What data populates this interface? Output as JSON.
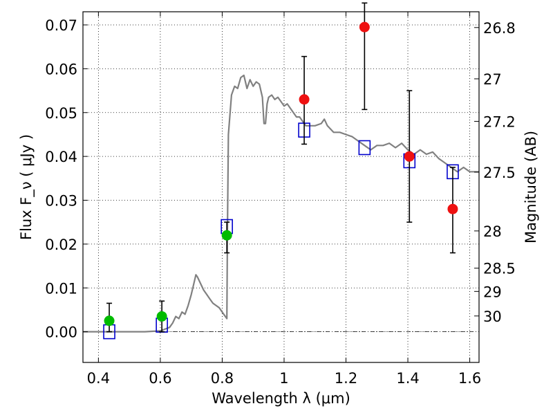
{
  "chart_data": {
    "type": "scatter",
    "xlabel": "Wavelength  λ (μm)",
    "ylabel": "Flux  F_ν  ( μJy )",
    "y2label": "Magnitude (AB)",
    "xlim": [
      0.35,
      1.63
    ],
    "ylim": [
      -0.007,
      0.073
    ],
    "grid": true,
    "xticks": [
      {
        "value": 0.4,
        "label": "0.4"
      },
      {
        "value": 0.6,
        "label": "0.6"
      },
      {
        "value": 0.8,
        "label": "0.8"
      },
      {
        "value": 1.0,
        "label": "1"
      },
      {
        "value": 1.2,
        "label": "1.2"
      },
      {
        "value": 1.4,
        "label": "1.4"
      },
      {
        "value": 1.6,
        "label": "1.6"
      }
    ],
    "yticks": [
      {
        "value": 0.0,
        "label": "0.00"
      },
      {
        "value": 0.01,
        "label": "0.01"
      },
      {
        "value": 0.02,
        "label": "0.02"
      },
      {
        "value": 0.03,
        "label": "0.03"
      },
      {
        "value": 0.04,
        "label": "0.04"
      },
      {
        "value": 0.05,
        "label": "0.05"
      },
      {
        "value": 0.06,
        "label": "0.06"
      },
      {
        "value": 0.07,
        "label": "0.07"
      }
    ],
    "y2ticks": [
      {
        "label": "26.8",
        "flux": 0.0694
      },
      {
        "label": "27",
        "flux": 0.0577
      },
      {
        "label": "27.2",
        "flux": 0.048
      },
      {
        "label": "27.5",
        "flux": 0.0364
      },
      {
        "label": "28",
        "flux": 0.023
      },
      {
        "label": "28.5",
        "flux": 0.0145
      },
      {
        "label": "29",
        "flux": 0.0092
      },
      {
        "label": "30",
        "flux": 0.0036
      }
    ],
    "series": [
      {
        "kind": "line",
        "color": "#808080",
        "points": [
          [
            0.35,
            0.0
          ],
          [
            0.55,
            0.0
          ],
          [
            0.6,
            0.0002
          ],
          [
            0.63,
            0.001
          ],
          [
            0.64,
            0.002
          ],
          [
            0.65,
            0.0035
          ],
          [
            0.66,
            0.003
          ],
          [
            0.67,
            0.0045
          ],
          [
            0.68,
            0.004
          ],
          [
            0.69,
            0.006
          ],
          [
            0.7,
            0.0085
          ],
          [
            0.71,
            0.0115
          ],
          [
            0.715,
            0.013
          ],
          [
            0.72,
            0.0125
          ],
          [
            0.73,
            0.011
          ],
          [
            0.74,
            0.0095
          ],
          [
            0.75,
            0.0085
          ],
          [
            0.76,
            0.0075
          ],
          [
            0.77,
            0.0065
          ],
          [
            0.78,
            0.006
          ],
          [
            0.79,
            0.0055
          ],
          [
            0.8,
            0.0045
          ],
          [
            0.815,
            0.003
          ],
          [
            0.817,
            0.024
          ],
          [
            0.82,
            0.045
          ],
          [
            0.83,
            0.054
          ],
          [
            0.84,
            0.056
          ],
          [
            0.85,
            0.0555
          ],
          [
            0.86,
            0.058
          ],
          [
            0.87,
            0.0585
          ],
          [
            0.88,
            0.0555
          ],
          [
            0.89,
            0.0575
          ],
          [
            0.9,
            0.056
          ],
          [
            0.91,
            0.057
          ],
          [
            0.92,
            0.0565
          ],
          [
            0.93,
            0.0535
          ],
          [
            0.935,
            0.0475
          ],
          [
            0.94,
            0.0475
          ],
          [
            0.945,
            0.052
          ],
          [
            0.95,
            0.0535
          ],
          [
            0.96,
            0.054
          ],
          [
            0.97,
            0.053
          ],
          [
            0.98,
            0.0535
          ],
          [
            0.99,
            0.0525
          ],
          [
            1.0,
            0.0515
          ],
          [
            1.01,
            0.052
          ],
          [
            1.02,
            0.051
          ],
          [
            1.03,
            0.05
          ],
          [
            1.04,
            0.049
          ],
          [
            1.05,
            0.049
          ],
          [
            1.07,
            0.047
          ],
          [
            1.1,
            0.047
          ],
          [
            1.12,
            0.0475
          ],
          [
            1.13,
            0.0485
          ],
          [
            1.14,
            0.047
          ],
          [
            1.16,
            0.0455
          ],
          [
            1.18,
            0.0455
          ],
          [
            1.2,
            0.045
          ],
          [
            1.22,
            0.0445
          ],
          [
            1.24,
            0.0435
          ],
          [
            1.26,
            0.0425
          ],
          [
            1.28,
            0.0415
          ],
          [
            1.3,
            0.0425
          ],
          [
            1.32,
            0.0425
          ],
          [
            1.34,
            0.043
          ],
          [
            1.36,
            0.042
          ],
          [
            1.38,
            0.043
          ],
          [
            1.4,
            0.0415
          ],
          [
            1.42,
            0.0405
          ],
          [
            1.44,
            0.0415
          ],
          [
            1.46,
            0.0405
          ],
          [
            1.48,
            0.041
          ],
          [
            1.5,
            0.0395
          ],
          [
            1.52,
            0.0385
          ],
          [
            1.54,
            0.0375
          ],
          [
            1.56,
            0.0365
          ],
          [
            1.58,
            0.0375
          ],
          [
            1.6,
            0.0365
          ],
          [
            1.63,
            0.0365
          ]
        ]
      },
      {
        "kind": "points",
        "marker": "open-square",
        "color": "#0000cc",
        "x": [
          0.435,
          0.605,
          0.815,
          1.065,
          1.26,
          1.405,
          1.545
        ],
        "y": [
          0.0,
          0.0015,
          0.024,
          0.046,
          0.042,
          0.039,
          0.0365
        ]
      },
      {
        "kind": "points",
        "marker": "filled-circle",
        "color": "#00bb00",
        "x": [
          0.435,
          0.605,
          0.815
        ],
        "y": [
          0.0025,
          0.0035,
          0.022
        ],
        "yerr_low": [
          0.0025,
          0.0035,
          0.004
        ],
        "yerr_high": [
          0.004,
          0.0035,
          0.003
        ]
      },
      {
        "kind": "points",
        "marker": "filled-circle",
        "color": "#ee1111",
        "x": [
          1.065,
          1.26,
          1.405,
          1.545
        ],
        "y": [
          0.053,
          0.0695,
          0.04,
          0.028
        ],
        "yerr_low": [
          0.0102,
          0.0188,
          0.015,
          0.01
        ],
        "yerr_high": [
          0.0098,
          0.0055,
          0.015,
          0.0095
        ]
      }
    ]
  }
}
